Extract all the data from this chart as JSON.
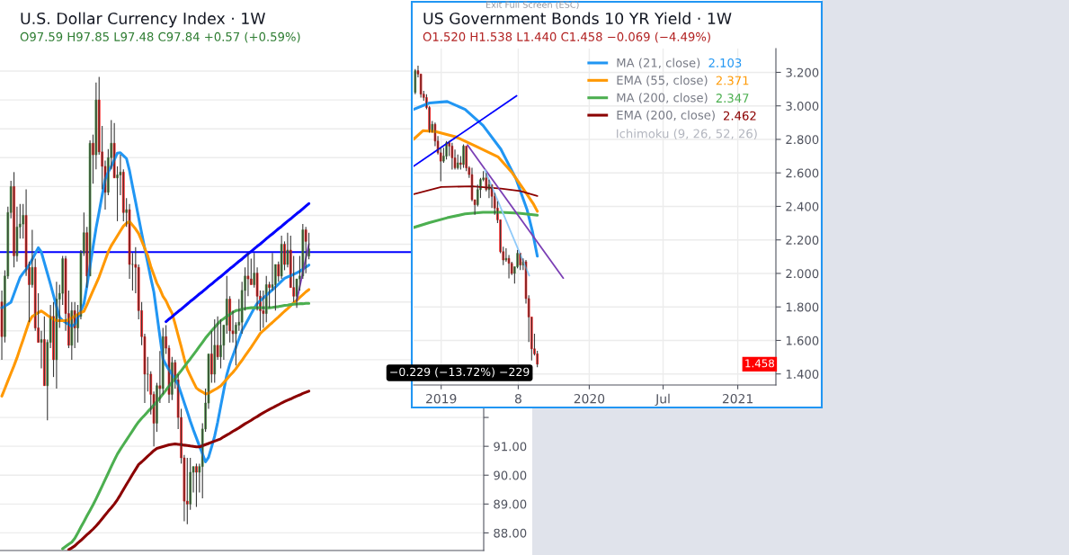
{
  "chart_data": [
    {
      "type": "candlestick",
      "title": "U.S. Dollar Currency Index · 1W",
      "annotations": [
        "O97.59 H97.85 L97.48 C97.84 +0.57 (+0.59%)"
      ],
      "categories": [
        null,
        null,
        null,
        null,
        null,
        null,
        null,
        null,
        null,
        null,
        null,
        null,
        null,
        null,
        null,
        null,
        null,
        null,
        null,
        null,
        null,
        null,
        null,
        null,
        null,
        null,
        null,
        null,
        null,
        null,
        null,
        null,
        null,
        null,
        null,
        null,
        null,
        null,
        null,
        null,
        null,
        null,
        null,
        null,
        null,
        null,
        null,
        null,
        null,
        null,
        null,
        null,
        null,
        null,
        null,
        null,
        null,
        null,
        null,
        null,
        null,
        null,
        null,
        null,
        null,
        null,
        null,
        null,
        null,
        null,
        null,
        null,
        null,
        null,
        null,
        null,
        null,
        null,
        null,
        null,
        null,
        null,
        null,
        null,
        null,
        null,
        null,
        null,
        null,
        null,
        null,
        null,
        null,
        null,
        null,
        null,
        null,
        null,
        null,
        null,
        null,
        null
      ],
      "ohlc": [
        [
          96.0,
          96.4,
          94.0,
          94.8
        ],
        [
          94.8,
          97.1,
          94.6,
          96.9
        ],
        [
          96.9,
          99.3,
          96.8,
          99.1
        ],
        [
          99.1,
          100.2,
          98.9,
          100.0
        ],
        [
          100.0,
          100.5,
          97.2,
          97.6
        ],
        [
          97.6,
          99.3,
          97.4,
          98.6
        ],
        [
          98.6,
          99.4,
          98.2,
          98.7
        ],
        [
          98.7,
          99.4,
          98.2,
          99.0
        ],
        [
          99.0,
          99.9,
          96.9,
          97.2
        ],
        [
          97.2,
          97.4,
          95.3,
          96.6
        ],
        [
          96.6,
          98.5,
          96.5,
          97.2
        ],
        [
          97.2,
          97.5,
          95.0,
          95.1
        ],
        [
          95.1,
          96.3,
          94.6,
          94.6
        ],
        [
          94.6,
          95.0,
          93.7,
          94.7
        ],
        [
          94.7,
          95.5,
          93.1,
          93.1
        ],
        [
          93.1,
          94.7,
          91.9,
          94.6
        ],
        [
          94.6,
          95.9,
          94.4,
          95.5
        ],
        [
          95.5,
          96.0,
          93.4,
          94.0
        ],
        [
          94.0,
          96.7,
          93.0,
          96.1
        ],
        [
          96.1,
          96.6,
          95.1,
          96.3
        ],
        [
          96.3,
          97.6,
          95.9,
          97.5
        ],
        [
          97.5,
          97.6,
          95.0,
          95.6
        ],
        [
          95.6,
          96.4,
          94.4,
          94.5
        ],
        [
          94.5,
          96.0,
          94.0,
          95.7
        ],
        [
          95.7,
          96.0,
          94.4,
          95.1
        ],
        [
          95.1,
          95.9,
          94.6,
          95.5
        ],
        [
          95.5,
          97.8,
          95.4,
          97.7
        ],
        [
          97.7,
          99.1,
          97.6,
          98.4
        ],
        [
          98.4,
          98.6,
          96.5,
          96.9
        ],
        [
          96.9,
          101.6,
          96.9,
          101.5
        ],
        [
          101.5,
          101.8,
          100.1,
          101.1
        ],
        [
          101.1,
          103.6,
          100.6,
          103.0
        ],
        [
          103.0,
          103.8,
          101.1,
          101.2
        ],
        [
          101.2,
          102.1,
          99.9,
          100.7
        ],
        [
          100.7,
          100.9,
          99.2,
          99.8
        ],
        [
          99.8,
          101.3,
          99.7,
          101.0
        ],
        [
          101.0,
          102.3,
          100.6,
          101.5
        ],
        [
          101.5,
          102.2,
          100.3,
          100.3
        ],
        [
          100.3,
          100.7,
          98.8,
          100.4
        ],
        [
          100.4,
          101.1,
          99.7,
          100.5
        ],
        [
          100.5,
          100.6,
          98.8,
          99.1
        ],
        [
          99.1,
          99.6,
          98.6,
          99.2
        ],
        [
          99.2,
          99.4,
          96.8,
          97.3
        ],
        [
          97.3,
          97.7,
          96.4,
          97.3
        ],
        [
          97.3,
          97.9,
          96.3,
          97.2
        ],
        [
          97.2,
          97.3,
          95.4,
          95.7
        ],
        [
          95.7,
          96.0,
          94.5,
          94.8
        ],
        [
          94.8,
          94.9,
          92.5,
          93.5
        ],
        [
          93.5,
          94.1,
          92.9,
          93.5
        ],
        [
          93.5,
          93.6,
          92.1,
          92.8
        ],
        [
          92.8,
          92.9,
          91.0,
          91.8
        ],
        [
          91.8,
          93.2,
          91.5,
          93.1
        ],
        [
          93.1,
          94.3,
          92.5,
          93.0
        ],
        [
          93.0,
          95.1,
          92.8,
          94.8
        ],
        [
          94.8,
          95.2,
          94.2,
          94.4
        ],
        [
          94.4,
          94.5,
          92.5,
          92.8
        ],
        [
          92.8,
          94.1,
          92.6,
          93.9
        ],
        [
          93.9,
          94.0,
          93.0,
          93.3
        ],
        [
          93.3,
          93.5,
          91.6,
          92.0
        ],
        [
          92.0,
          92.3,
          90.4,
          90.6
        ],
        [
          90.6,
          90.7,
          88.4,
          89.1
        ],
        [
          89.1,
          90.6,
          88.3,
          89.0
        ],
        [
          89.0,
          90.6,
          88.8,
          90.1
        ],
        [
          90.1,
          90.3,
          89.4,
          90.3
        ],
        [
          90.3,
          90.4,
          88.9,
          90.1
        ],
        [
          90.1,
          90.4,
          89.4,
          90.3
        ],
        [
          90.3,
          91.8,
          89.2,
          91.6
        ],
        [
          91.6,
          93.0,
          91.5,
          92.5
        ],
        [
          92.5,
          94.2,
          92.3,
          94.2
        ],
        [
          94.2,
          95.0,
          93.2,
          93.5
        ],
        [
          93.5,
          95.4,
          93.2,
          94.5
        ],
        [
          94.5,
          95.5,
          94.0,
          94.1
        ],
        [
          94.1,
          95.4,
          93.7,
          94.5
        ],
        [
          94.5,
          95.2,
          94.0,
          95.2
        ],
        [
          95.2,
          96.9,
          94.9,
          96.1
        ],
        [
          96.1,
          96.2,
          94.6,
          95.0
        ],
        [
          95.0,
          95.7,
          94.6,
          94.9
        ],
        [
          94.9,
          95.3,
          93.8,
          95.2
        ],
        [
          95.2,
          96.1,
          95.0,
          95.3
        ],
        [
          95.3,
          96.7,
          94.9,
          96.4
        ],
        [
          96.4,
          97.2,
          95.7,
          96.9
        ],
        [
          96.9,
          97.7,
          96.2,
          96.8
        ],
        [
          96.8,
          97.5,
          96.6,
          96.6
        ],
        [
          96.6,
          97.7,
          96.5,
          97.0
        ],
        [
          97.0,
          97.2,
          95.7,
          96.2
        ],
        [
          96.2,
          96.4,
          95.0,
          95.7
        ],
        [
          95.7,
          96.4,
          95.1,
          95.6
        ],
        [
          95.6,
          96.9,
          95.3,
          96.6
        ],
        [
          96.6,
          96.7,
          95.8,
          96.5
        ],
        [
          96.5,
          97.7,
          96.4,
          96.6
        ],
        [
          96.6,
          97.3,
          95.7,
          97.3
        ],
        [
          97.3,
          97.4,
          96.7,
          96.9
        ],
        [
          96.9,
          98.3,
          96.8,
          98.0
        ],
        [
          98.0,
          98.1,
          97.1,
          97.3
        ],
        [
          97.3,
          98.4,
          97.2,
          97.8
        ],
        [
          97.8,
          98.3,
          96.5,
          96.5
        ],
        [
          96.5,
          97.6,
          96.0,
          96.2
        ],
        [
          96.2,
          96.8,
          95.8,
          96.8
        ],
        [
          96.8,
          97.6,
          96.4,
          96.9
        ],
        [
          96.9,
          98.7,
          96.8,
          98.5
        ],
        [
          98.5,
          98.6,
          97.0,
          98.1
        ],
        [
          97.59,
          98.4,
          97.48,
          97.84
        ]
      ],
      "series": [
        {
          "type": "line",
          "color": "#2196f3",
          "values": [
            95.8,
            95.86,
            95.92,
            95.99,
            96.28,
            96.57,
            96.85,
            97.0,
            97.13,
            97.28,
            97.48,
            97.68,
            97.88,
            97.73,
            97.36,
            96.99,
            96.62,
            96.23,
            95.84,
            95.47,
            95.36,
            95.29,
            95.22,
            95.16,
            95.22,
            95.46,
            95.7,
            95.94,
            96.56,
            97.23,
            97.9,
            98.56,
            99.12,
            99.7,
            100.25,
            100.5,
            100.7,
            100.93,
            101.16,
            101.17,
            101.07,
            100.97,
            100.55,
            100.0,
            99.47,
            98.92,
            98.38,
            97.86,
            97.35,
            96.83,
            96.35,
            95.58,
            94.8,
            94.03,
            93.82,
            93.65,
            93.49,
            93.32,
            93.13,
            92.83,
            92.51,
            92.2,
            91.87,
            91.57,
            91.29,
            91.01,
            90.74,
            90.46,
            90.62,
            90.98,
            91.35,
            91.84,
            92.39,
            92.94,
            93.48,
            93.85,
            94.14,
            94.43,
            94.72,
            95.01,
            95.2,
            95.39,
            95.59,
            95.78,
            95.95,
            96.04,
            96.14,
            96.23,
            96.33,
            96.42,
            96.52,
            96.62,
            96.72,
            96.82,
            96.87,
            96.91,
            96.96,
            97.01,
            97.06,
            97.14,
            97.21,
            97.28
          ]
        },
        {
          "type": "line",
          "color": "#ff9800",
          "values": [
            92.74,
            93.0,
            93.27,
            93.53,
            93.79,
            94.07,
            94.39,
            94.69,
            95.01,
            95.32,
            95.5,
            95.56,
            95.63,
            95.69,
            95.62,
            95.54,
            95.47,
            95.4,
            95.35,
            95.35,
            95.35,
            95.35,
            95.39,
            95.45,
            95.51,
            95.57,
            95.63,
            95.68,
            95.9,
            96.15,
            96.39,
            96.63,
            96.87,
            97.16,
            97.45,
            97.74,
            97.95,
            98.12,
            98.29,
            98.46,
            98.63,
            98.73,
            98.79,
            98.66,
            98.53,
            98.37,
            98.12,
            97.86,
            97.6,
            97.23,
            96.94,
            96.65,
            96.45,
            96.2,
            96.04,
            95.81,
            95.61,
            95.24,
            94.84,
            94.45,
            94.04,
            93.67,
            93.45,
            93.23,
            93.02,
            92.94,
            92.88,
            92.81,
            92.84,
            92.9,
            92.96,
            93.02,
            93.09,
            93.21,
            93.33,
            93.45,
            93.56,
            93.69,
            93.84,
            93.98,
            94.13,
            94.28,
            94.43,
            94.59,
            94.75,
            94.91,
            95.01,
            95.1,
            95.2,
            95.29,
            95.39,
            95.48,
            95.58,
            95.68,
            95.77,
            95.87,
            95.97,
            96.06,
            96.16,
            96.25,
            96.35,
            96.43
          ]
        },
        {
          "type": "line",
          "color": "#4caf50",
          "values": [
            null,
            null,
            null,
            null,
            null,
            null,
            null,
            null,
            null,
            null,
            null,
            null,
            null,
            null,
            null,
            null,
            null,
            null,
            null,
            null,
            87.45,
            87.53,
            87.61,
            87.68,
            87.81,
            88.0,
            88.2,
            88.39,
            88.59,
            88.78,
            88.97,
            89.18,
            89.4,
            89.62,
            89.85,
            90.07,
            90.3,
            90.52,
            90.73,
            90.9,
            91.06,
            91.22,
            91.38,
            91.54,
            91.7,
            91.85,
            91.97,
            92.08,
            92.2,
            92.31,
            92.43,
            92.55,
            92.68,
            92.81,
            92.95,
            93.09,
            93.22,
            93.35,
            93.49,
            93.62,
            93.76,
            93.9,
            94.03,
            94.17,
            94.31,
            94.46,
            94.6,
            94.75,
            94.88,
            95.0,
            95.12,
            95.24,
            95.35,
            95.42,
            95.5,
            95.57,
            95.64,
            95.7,
            95.72,
            95.75,
            95.77,
            95.79,
            95.8,
            95.8,
            95.8,
            95.8,
            95.8,
            95.8,
            95.8,
            95.81,
            95.83,
            95.84,
            95.86,
            95.88,
            95.89,
            95.91,
            95.92,
            95.93,
            95.94,
            95.94,
            95.95,
            95.95
          ]
        },
        {
          "type": "line",
          "color": "#8b0000",
          "values": [
            null,
            null,
            null,
            null,
            null,
            null,
            null,
            null,
            null,
            null,
            null,
            null,
            null,
            null,
            null,
            null,
            null,
            null,
            null,
            null,
            null,
            null,
            87.42,
            87.48,
            87.55,
            87.65,
            87.74,
            87.84,
            87.94,
            88.03,
            88.13,
            88.24,
            88.36,
            88.49,
            88.62,
            88.75,
            88.87,
            89.0,
            89.15,
            89.32,
            89.5,
            89.68,
            89.85,
            90.03,
            90.2,
            90.37,
            90.46,
            90.56,
            90.66,
            90.75,
            90.85,
            90.93,
            90.96,
            90.99,
            91.02,
            91.05,
            91.07,
            91.08,
            91.07,
            91.06,
            91.04,
            91.03,
            91.01,
            91.0,
            90.98,
            90.98,
            91.02,
            91.06,
            91.1,
            91.14,
            91.18,
            91.22,
            91.26,
            91.33,
            91.39,
            91.45,
            91.52,
            91.58,
            91.64,
            91.71,
            91.78,
            91.84,
            91.9,
            91.97,
            92.03,
            92.1,
            92.16,
            92.22,
            92.28,
            92.33,
            92.39,
            92.44,
            92.5,
            92.55,
            92.6,
            92.64,
            92.69,
            92.74,
            92.78,
            92.83,
            92.87,
            92.91
          ]
        },
        {
          "type": "line",
          "color": "#0000ff",
          "values": [
            null,
            null,
            null,
            null,
            null,
            null,
            null,
            null,
            null,
            null,
            null,
            null,
            null,
            null,
            null,
            null,
            null,
            null,
            null,
            null,
            null,
            null,
            null,
            null,
            null,
            null,
            null,
            null,
            null,
            null,
            null,
            null,
            null,
            null,
            null,
            null,
            null,
            null,
            null,
            null,
            null,
            null,
            null,
            null,
            null,
            null,
            null,
            null,
            null,
            null,
            null,
            null,
            null,
            null,
            95.32,
            95.41,
            95.49,
            95.58,
            95.67,
            95.75,
            95.84,
            95.93,
            96.02,
            96.1,
            96.19,
            96.28,
            96.36,
            96.45,
            96.54,
            96.62,
            96.71,
            96.8,
            96.88,
            96.97,
            97.06,
            97.15,
            97.23,
            97.32,
            97.41,
            97.49,
            97.58,
            97.67,
            97.75,
            97.84,
            97.93,
            98.01,
            98.1,
            98.19,
            98.28,
            98.36,
            98.45,
            98.54,
            98.62,
            98.71,
            98.8,
            98.88,
            98.97,
            99.06,
            99.14,
            99.23,
            99.32,
            99.41
          ]
        },
        {
          "type": "line",
          "color": "#7b3fb5",
          "values": [
            null,
            null,
            null,
            null,
            null,
            null,
            null,
            null,
            null,
            null,
            null,
            null,
            null,
            null,
            null,
            null,
            null,
            null,
            null,
            null,
            null,
            null,
            null,
            null,
            null,
            null,
            null,
            null,
            null,
            null,
            null,
            null,
            null,
            null,
            null,
            null,
            null,
            null,
            null,
            null,
            null,
            null,
            null,
            null,
            null,
            null,
            null,
            null,
            null,
            null,
            null,
            null,
            null,
            null,
            null,
            null,
            null,
            null,
            null,
            null,
            null,
            null,
            null,
            null,
            null,
            null,
            null,
            null,
            null,
            null,
            null,
            null,
            null,
            null,
            null,
            null,
            null,
            null,
            null,
            null,
            null,
            null,
            null,
            null,
            null,
            null,
            null,
            null,
            null,
            null,
            null,
            null,
            null,
            null,
            null,
            null,
            null,
            96.04,
            96.53,
            97.02,
            97.51,
            98.01
          ]
        }
      ],
      "ref_lines": [
        {
          "axis": "y",
          "value": 97.73,
          "color": "#0000ff"
        }
      ],
      "ylim": [
        87.39,
        104.78
      ],
      "yticks": [
        {
          "value": 88,
          "label": "88.00"
        },
        {
          "value": 89,
          "label": "89.00"
        },
        {
          "value": 90,
          "label": "90.00"
        },
        {
          "value": 91,
          "label": "91.00"
        },
        {
          "value": 92,
          "label": null
        },
        {
          "value": 93,
          "label": null
        },
        {
          "value": 94,
          "label": null
        },
        {
          "value": 95,
          "label": null
        },
        {
          "value": 96,
          "label": null
        },
        {
          "value": 97,
          "label": null
        },
        {
          "value": 98,
          "label": null
        },
        {
          "value": 99,
          "label": null
        },
        {
          "value": 100,
          "label": null
        },
        {
          "value": 101,
          "label": null
        },
        {
          "value": 102,
          "label": null
        },
        {
          "value": 103,
          "label": null
        },
        {
          "value": 104,
          "label": null
        }
      ],
      "tick_labels": "y",
      "grid": "y"
    },
    {
      "type": "candlestick",
      "title": "US Government Bonds 10 YR Yield · 1W",
      "annotations": [
        "O1.520 H1.538 L1.440 C1.458 −0.069 (−4.49%)",
        "Exit Full Screen (ESC)",
        "Ichimoku (9, 26, 52, 26)",
        "1.458",
        "−0.229 (−13.72%) −229",
        "2.103",
        "2.371",
        "2.347",
        "2.462"
      ],
      "x": [
        "2018-10-29",
        "2018-11-05",
        "2018-11-12",
        "2018-11-19",
        "2018-11-26",
        "2018-12-03",
        "2018-12-10",
        "2018-12-17",
        "2018-12-24",
        "2018-12-31",
        "2019-01-07",
        "2019-01-14",
        "2019-01-21",
        "2019-01-28",
        "2019-02-04",
        "2019-02-11",
        "2019-02-18",
        "2019-02-25",
        "2019-03-04",
        "2019-03-11",
        "2019-03-18",
        "2019-03-25",
        "2019-04-01",
        "2019-04-08",
        "2019-04-15",
        "2019-04-22",
        "2019-04-29",
        "2019-05-06",
        "2019-05-13",
        "2019-05-20",
        "2019-05-27",
        "2019-06-03",
        "2019-06-10",
        "2019-06-17",
        "2019-06-24",
        "2019-07-01",
        "2019-07-08",
        "2019-07-15",
        "2019-07-22",
        "2019-07-29",
        "2019-08-05",
        "2019-08-12",
        "2019-08-19",
        "2019-08-26"
      ],
      "ohlc": [
        [
          3.08,
          3.22,
          3.07,
          3.21
        ],
        [
          3.21,
          3.24,
          3.17,
          3.19
        ],
        [
          3.19,
          3.19,
          3.05,
          3.07
        ],
        [
          3.07,
          3.09,
          3.03,
          3.05
        ],
        [
          3.05,
          3.07,
          2.98,
          2.99
        ],
        [
          2.99,
          3.0,
          2.84,
          2.85
        ],
        [
          2.85,
          2.91,
          2.84,
          2.89
        ],
        [
          2.89,
          2.9,
          2.76,
          2.79
        ],
        [
          2.79,
          2.82,
          2.71,
          2.72
        ],
        [
          2.72,
          2.75,
          2.55,
          2.67
        ],
        [
          2.67,
          2.75,
          2.66,
          2.7
        ],
        [
          2.7,
          2.79,
          2.68,
          2.78
        ],
        [
          2.78,
          2.79,
          2.7,
          2.76
        ],
        [
          2.76,
          2.78,
          2.62,
          2.69
        ],
        [
          2.69,
          2.74,
          2.62,
          2.63
        ],
        [
          2.63,
          2.71,
          2.62,
          2.66
        ],
        [
          2.66,
          2.7,
          2.62,
          2.65
        ],
        [
          2.65,
          2.77,
          2.63,
          2.76
        ],
        [
          2.76,
          2.76,
          2.61,
          2.63
        ],
        [
          2.63,
          2.64,
          2.57,
          2.59
        ],
        [
          2.59,
          2.63,
          2.43,
          2.44
        ],
        [
          2.44,
          2.44,
          2.35,
          2.41
        ],
        [
          2.41,
          2.53,
          2.4,
          2.5
        ],
        [
          2.5,
          2.57,
          2.45,
          2.56
        ],
        [
          2.56,
          2.61,
          2.55,
          2.57
        ],
        [
          2.57,
          2.6,
          2.49,
          2.5
        ],
        [
          2.5,
          2.56,
          2.45,
          2.53
        ],
        [
          2.53,
          2.53,
          2.39,
          2.46
        ],
        [
          2.46,
          2.48,
          2.35,
          2.39
        ],
        [
          2.39,
          2.43,
          2.3,
          2.32
        ],
        [
          2.32,
          2.32,
          2.12,
          2.13
        ],
        [
          2.13,
          2.16,
          2.05,
          2.08
        ],
        [
          2.08,
          2.15,
          2.07,
          2.09
        ],
        [
          2.09,
          2.11,
          1.97,
          2.06
        ],
        [
          2.06,
          2.07,
          1.99,
          2.0
        ],
        [
          2.0,
          2.04,
          1.94,
          2.04
        ],
        [
          2.04,
          2.14,
          2.03,
          2.12
        ],
        [
          2.12,
          2.12,
          2.02,
          2.05
        ],
        [
          2.05,
          2.09,
          2.02,
          2.07
        ],
        [
          2.07,
          2.08,
          1.82,
          1.85
        ],
        [
          1.85,
          1.87,
          1.59,
          1.74
        ],
        [
          1.74,
          1.74,
          1.48,
          1.55
        ],
        [
          1.55,
          1.64,
          1.51,
          1.52
        ],
        [
          1.52,
          1.538,
          1.44,
          1.458
        ]
      ],
      "series": [
        {
          "type": "line",
          "name": "MA (21, close)",
          "color": "#2196f3",
          "x": [
            "2018-10-25",
            "2018-12-03",
            "2019-01-16",
            "2019-03-01",
            "2019-04-14",
            "2019-05-28",
            "2019-07-04",
            "2019-08-01",
            "2019-08-14",
            "2019-08-26"
          ],
          "values": [
            2.979,
            3.017,
            3.026,
            2.979,
            2.884,
            2.742,
            2.567,
            2.378,
            2.25,
            2.103
          ]
        },
        {
          "type": "line",
          "name": "EMA (55, close)",
          "color": "#ff9800",
          "x": [
            "2018-10-25",
            "2018-11-17",
            "2018-12-18",
            "2019-02-07",
            "2019-03-29",
            "2019-05-21",
            "2019-06-25",
            "2019-07-26",
            "2019-08-17",
            "2019-08-26"
          ],
          "values": [
            2.8,
            2.852,
            2.847,
            2.814,
            2.757,
            2.696,
            2.601,
            2.492,
            2.412,
            2.371
          ]
        },
        {
          "type": "line",
          "name": "MA (200, close)",
          "color": "#4caf50",
          "x": [
            "2018-10-25",
            "2018-12-03",
            "2019-01-16",
            "2019-03-01",
            "2019-04-14",
            "2019-05-28",
            "2019-07-11",
            "2019-08-26"
          ],
          "values": [
            2.274,
            2.303,
            2.332,
            2.355,
            2.365,
            2.365,
            2.36,
            2.347
          ]
        },
        {
          "type": "line",
          "name": "EMA (200, close)",
          "color": "#8b0000",
          "x": [
            "2018-10-25",
            "2019-01-01",
            "2019-03-19",
            "2019-05-28",
            "2019-07-15",
            "2019-08-26"
          ],
          "values": [
            2.473,
            2.516,
            2.52,
            2.506,
            2.492,
            2.462
          ]
        },
        {
          "type": "line",
          "color": "#0000ff",
          "x": [
            "2018-10-25",
            "2019-07-06"
          ],
          "values": [
            2.64,
            3.06
          ]
        },
        {
          "type": "line",
          "color": "#7b3fb5",
          "x": [
            "2019-03-07",
            "2019-10-29"
          ],
          "values": [
            2.766,
            1.972
          ]
        },
        {
          "type": "line",
          "color": "#90caf9",
          "x": [
            "2019-04-19",
            "2019-08-06"
          ],
          "values": [
            2.616,
            1.987
          ]
        }
      ],
      "xlim": [
        "2018-10-25",
        "2021-04-05"
      ],
      "xticks": [
        {
          "value": "2019-01-01",
          "label": "2019"
        },
        {
          "value": "2019-07-10",
          "label": "8"
        },
        {
          "value": "2020-01-01",
          "label": "2020"
        },
        {
          "value": "2020-07-01",
          "label": "Jul"
        },
        {
          "value": "2021-01-01",
          "label": "2021"
        }
      ],
      "ylim": [
        1.334,
        3.342
      ],
      "yticks": [
        {
          "value": 1.4,
          "label": "1.400"
        },
        {
          "value": 1.6,
          "label": "1.600"
        },
        {
          "value": 1.8,
          "label": "1.800"
        },
        {
          "value": 2.0,
          "label": "2.000"
        },
        {
          "value": 2.2,
          "label": "2.200"
        },
        {
          "value": 2.4,
          "label": "2.400"
        },
        {
          "value": 2.6,
          "label": "2.600"
        },
        {
          "value": 2.8,
          "label": "2.800"
        },
        {
          "value": 3.0,
          "label": "3.000"
        },
        {
          "value": 3.2,
          "label": "3.200"
        }
      ],
      "grid": true,
      "legend": "top right"
    }
  ]
}
